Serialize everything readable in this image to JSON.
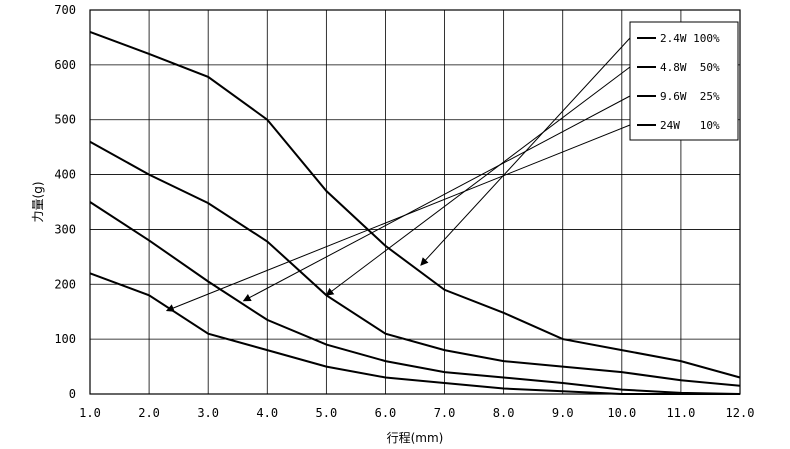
{
  "chart_data": {
    "type": "line",
    "xlabel": "行程(mm)",
    "ylabel": "力量(g)",
    "xlim": [
      1.0,
      12.0
    ],
    "ylim": [
      0,
      700
    ],
    "x_ticks": [
      "1.0",
      "2.0",
      "3.0",
      "4.0",
      "5.0",
      "6.0",
      "7.0",
      "8.0",
      "9.0",
      "10.0",
      "11.0",
      "12.0"
    ],
    "y_ticks": [
      "0",
      "100",
      "200",
      "300",
      "400",
      "500",
      "600",
      "700"
    ],
    "grid": true,
    "legend_position": "top-right",
    "series": [
      {
        "name": "2.4W 100%",
        "x": [
          1.0,
          2.0,
          3.0,
          4.0,
          5.0,
          6.0,
          7.0,
          8.0,
          9.0,
          10.0,
          11.0,
          12.0
        ],
        "values": [
          660,
          620,
          578,
          500,
          370,
          270,
          190,
          148,
          100,
          80,
          60,
          30
        ]
      },
      {
        "name": "4.8W  50%",
        "x": [
          1.0,
          2.0,
          3.0,
          4.0,
          5.0,
          6.0,
          7.0,
          8.0,
          9.0,
          10.0,
          11.0,
          12.0
        ],
        "values": [
          460,
          400,
          348,
          278,
          180,
          110,
          80,
          60,
          50,
          40,
          25,
          15
        ]
      },
      {
        "name": "9.6W  25%",
        "x": [
          1.0,
          2.0,
          3.0,
          4.0,
          5.0,
          6.0,
          7.0,
          8.0,
          9.0,
          10.0,
          11.0,
          12.0
        ],
        "values": [
          350,
          280,
          205,
          135,
          90,
          60,
          40,
          30,
          20,
          8,
          2,
          0
        ]
      },
      {
        "name": "24W   10%",
        "x": [
          1.0,
          2.0,
          3.0,
          4.0,
          5.0,
          6.0,
          7.0,
          8.0,
          9.0,
          10.0,
          11.0,
          12.0
        ],
        "values": [
          220,
          180,
          110,
          80,
          50,
          30,
          20,
          10,
          5,
          0,
          0,
          0
        ]
      }
    ],
    "annotations": [
      {
        "series": 0,
        "arrow_to": [
          6.6,
          235
        ]
      },
      {
        "series": 1,
        "arrow_to": [
          5.0,
          180
        ]
      },
      {
        "series": 2,
        "arrow_to": [
          3.6,
          170
        ]
      },
      {
        "series": 3,
        "arrow_to": [
          2.3,
          152
        ]
      }
    ]
  }
}
